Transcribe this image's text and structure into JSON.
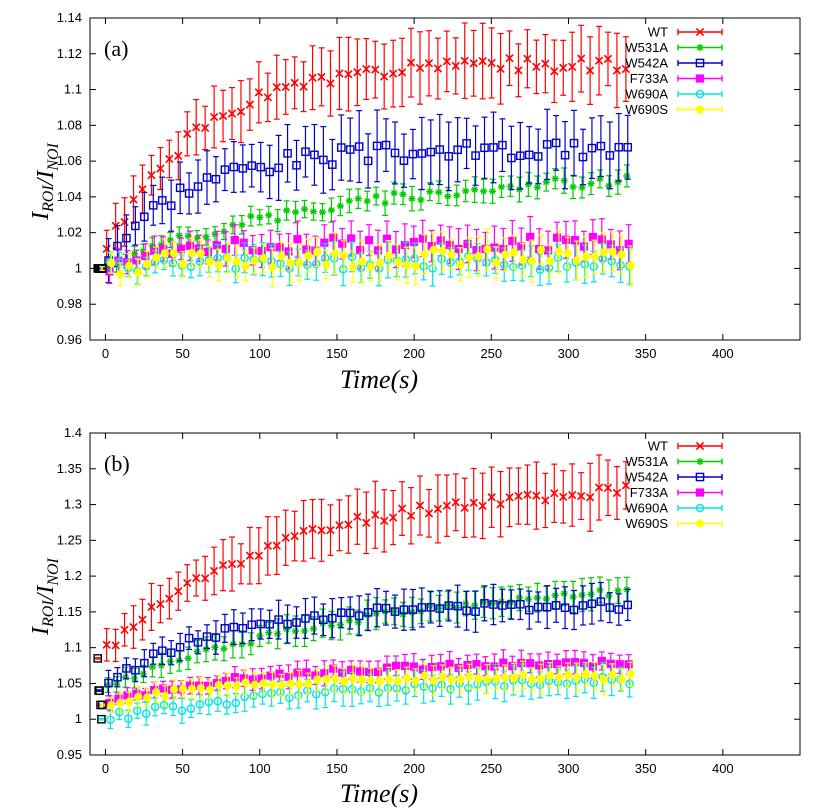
{
  "chart_data": [
    {
      "type": "scatter",
      "panel_label": "(a)",
      "xlabel": "Time(s)",
      "ylabel": "I_ROI/I_NOI",
      "xlim": [
        -10,
        450
      ],
      "ylim": [
        0.96,
        1.14
      ],
      "xticks": [
        "0",
        "50",
        "100",
        "150",
        "200",
        "250",
        "300",
        "350",
        "400"
      ],
      "yticks": [
        "0.96",
        "0.98",
        "1",
        "1.02",
        "1.04",
        "1.06",
        "1.08",
        "1.1",
        "1.12",
        "1.14"
      ],
      "legend_position": "top-right",
      "series": [
        {
          "name": "WT",
          "color": "#ff0000",
          "marker": "x",
          "start": 1.0,
          "end": 1.115,
          "rate": 60,
          "err": 0.018,
          "jitter": 0.004,
          "seed": 1
        },
        {
          "name": "W531A",
          "color": "#00cc00",
          "marker": "star",
          "start": 1.0,
          "end": 1.055,
          "rate": 150,
          "err": 0.006,
          "jitter": 0.003,
          "seed": 2
        },
        {
          "name": "W542A",
          "color": "#0000cc",
          "marker": "square",
          "start": 1.0,
          "end": 1.066,
          "rate": 50,
          "err": 0.017,
          "jitter": 0.005,
          "seed": 3
        },
        {
          "name": "F733A",
          "color": "#ff00ff",
          "marker": "filledsquare",
          "start": 1.0,
          "end": 1.014,
          "rate": 40,
          "err": 0.01,
          "jitter": 0.004,
          "seed": 4
        },
        {
          "name": "W690A",
          "color": "#00e5e5",
          "marker": "circle",
          "start": 1.0,
          "end": 1.003,
          "rate": 40,
          "err": 0.009,
          "jitter": 0.004,
          "seed": 5
        },
        {
          "name": "W690S",
          "color": "#ffff00",
          "marker": "filledcircle",
          "start": 1.0,
          "end": 1.006,
          "rate": 40,
          "err": 0.01,
          "jitter": 0.005,
          "seed": 6
        }
      ]
    },
    {
      "type": "scatter",
      "panel_label": "(b)",
      "xlabel": "Time(s)",
      "ylabel": "I_ROI/I_NOI",
      "xlim": [
        -10,
        450
      ],
      "ylim": [
        0.95,
        1.4
      ],
      "xticks": [
        "0",
        "50",
        "100",
        "150",
        "200",
        "250",
        "300",
        "350",
        "400"
      ],
      "yticks": [
        "0.95",
        "1",
        "1.05",
        "1.1",
        "1.15",
        "1.2",
        "1.25",
        "1.3",
        "1.35",
        "1.4"
      ],
      "legend_position": "top-right",
      "series": [
        {
          "name": "WT",
          "color": "#ff0000",
          "marker": "x",
          "start": 1.085,
          "end": 1.33,
          "rate": 110,
          "err": 0.04,
          "jitter": 0.008,
          "seed": 11
        },
        {
          "name": "W531A",
          "color": "#00cc00",
          "marker": "star",
          "start": 1.04,
          "end": 1.2,
          "rate": 170,
          "err": 0.02,
          "jitter": 0.005,
          "seed": 12
        },
        {
          "name": "W542A",
          "color": "#0000cc",
          "marker": "square",
          "start": 1.04,
          "end": 1.16,
          "rate": 70,
          "err": 0.025,
          "jitter": 0.006,
          "seed": 13
        },
        {
          "name": "F733A",
          "color": "#ff00ff",
          "marker": "filledsquare",
          "start": 1.02,
          "end": 1.08,
          "rate": 100,
          "err": 0.015,
          "jitter": 0.004,
          "seed": 14
        },
        {
          "name": "W690A",
          "color": "#00e5e5",
          "marker": "circle",
          "start": 1.0,
          "end": 1.06,
          "rate": 150,
          "err": 0.02,
          "jitter": 0.006,
          "seed": 15
        },
        {
          "name": "W690S",
          "color": "#ffff00",
          "marker": "filledcircle",
          "start": 1.02,
          "end": 1.06,
          "rate": 80,
          "err": 0.018,
          "jitter": 0.004,
          "seed": 16
        }
      ]
    }
  ]
}
